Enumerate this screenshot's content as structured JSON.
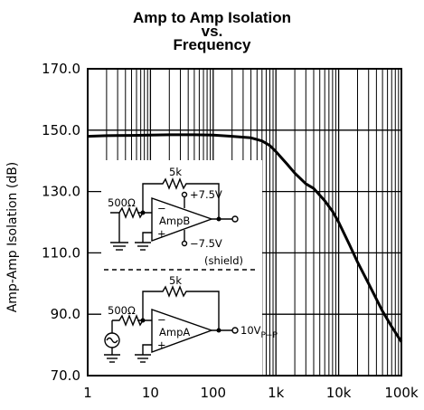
{
  "chart_data": {
    "type": "line",
    "title_lines": [
      "Amp to Amp Isolation",
      "vs.",
      "Frequency"
    ],
    "xlabel": "",
    "ylabel": "Amp-Amp Isolation (dB)",
    "xscale": "log",
    "xlim": [
      1,
      100000
    ],
    "ylim": [
      70,
      170
    ],
    "x_tick_labels": [
      "1",
      "10",
      "100",
      "1k",
      "10k",
      "100k"
    ],
    "y_tick_labels": [
      "70.0",
      "90.0",
      "110.0",
      "130.0",
      "150.0",
      "170.0"
    ],
    "grid": true,
    "series": [
      {
        "x": [
          1,
          2,
          5,
          10,
          20,
          50,
          100,
          200,
          400,
          600,
          800,
          1000,
          1500,
          2000,
          3000,
          4000,
          6000,
          8000,
          10000,
          15000,
          20000,
          30000,
          50000,
          70000,
          100000
        ],
        "y": [
          148,
          148.2,
          148.3,
          148.4,
          148.5,
          148.5,
          148.4,
          148,
          147.5,
          146.5,
          145,
          143,
          139,
          136,
          132.5,
          131,
          127,
          123.5,
          120,
          112.5,
          107,
          100,
          91,
          86,
          81
        ]
      }
    ],
    "annotations": {
      "amp_b": {
        "resistor": "500Ω",
        "feedback": "5k",
        "supply_pos": "+7.5V",
        "supply_neg": "−7.5V",
        "label": "AmpB"
      },
      "shield": "(shield)",
      "amp_a": {
        "resistor": "500Ω",
        "feedback": "5k",
        "label": "AmpA",
        "output": "10V",
        "output_sub": "P−P"
      }
    }
  }
}
